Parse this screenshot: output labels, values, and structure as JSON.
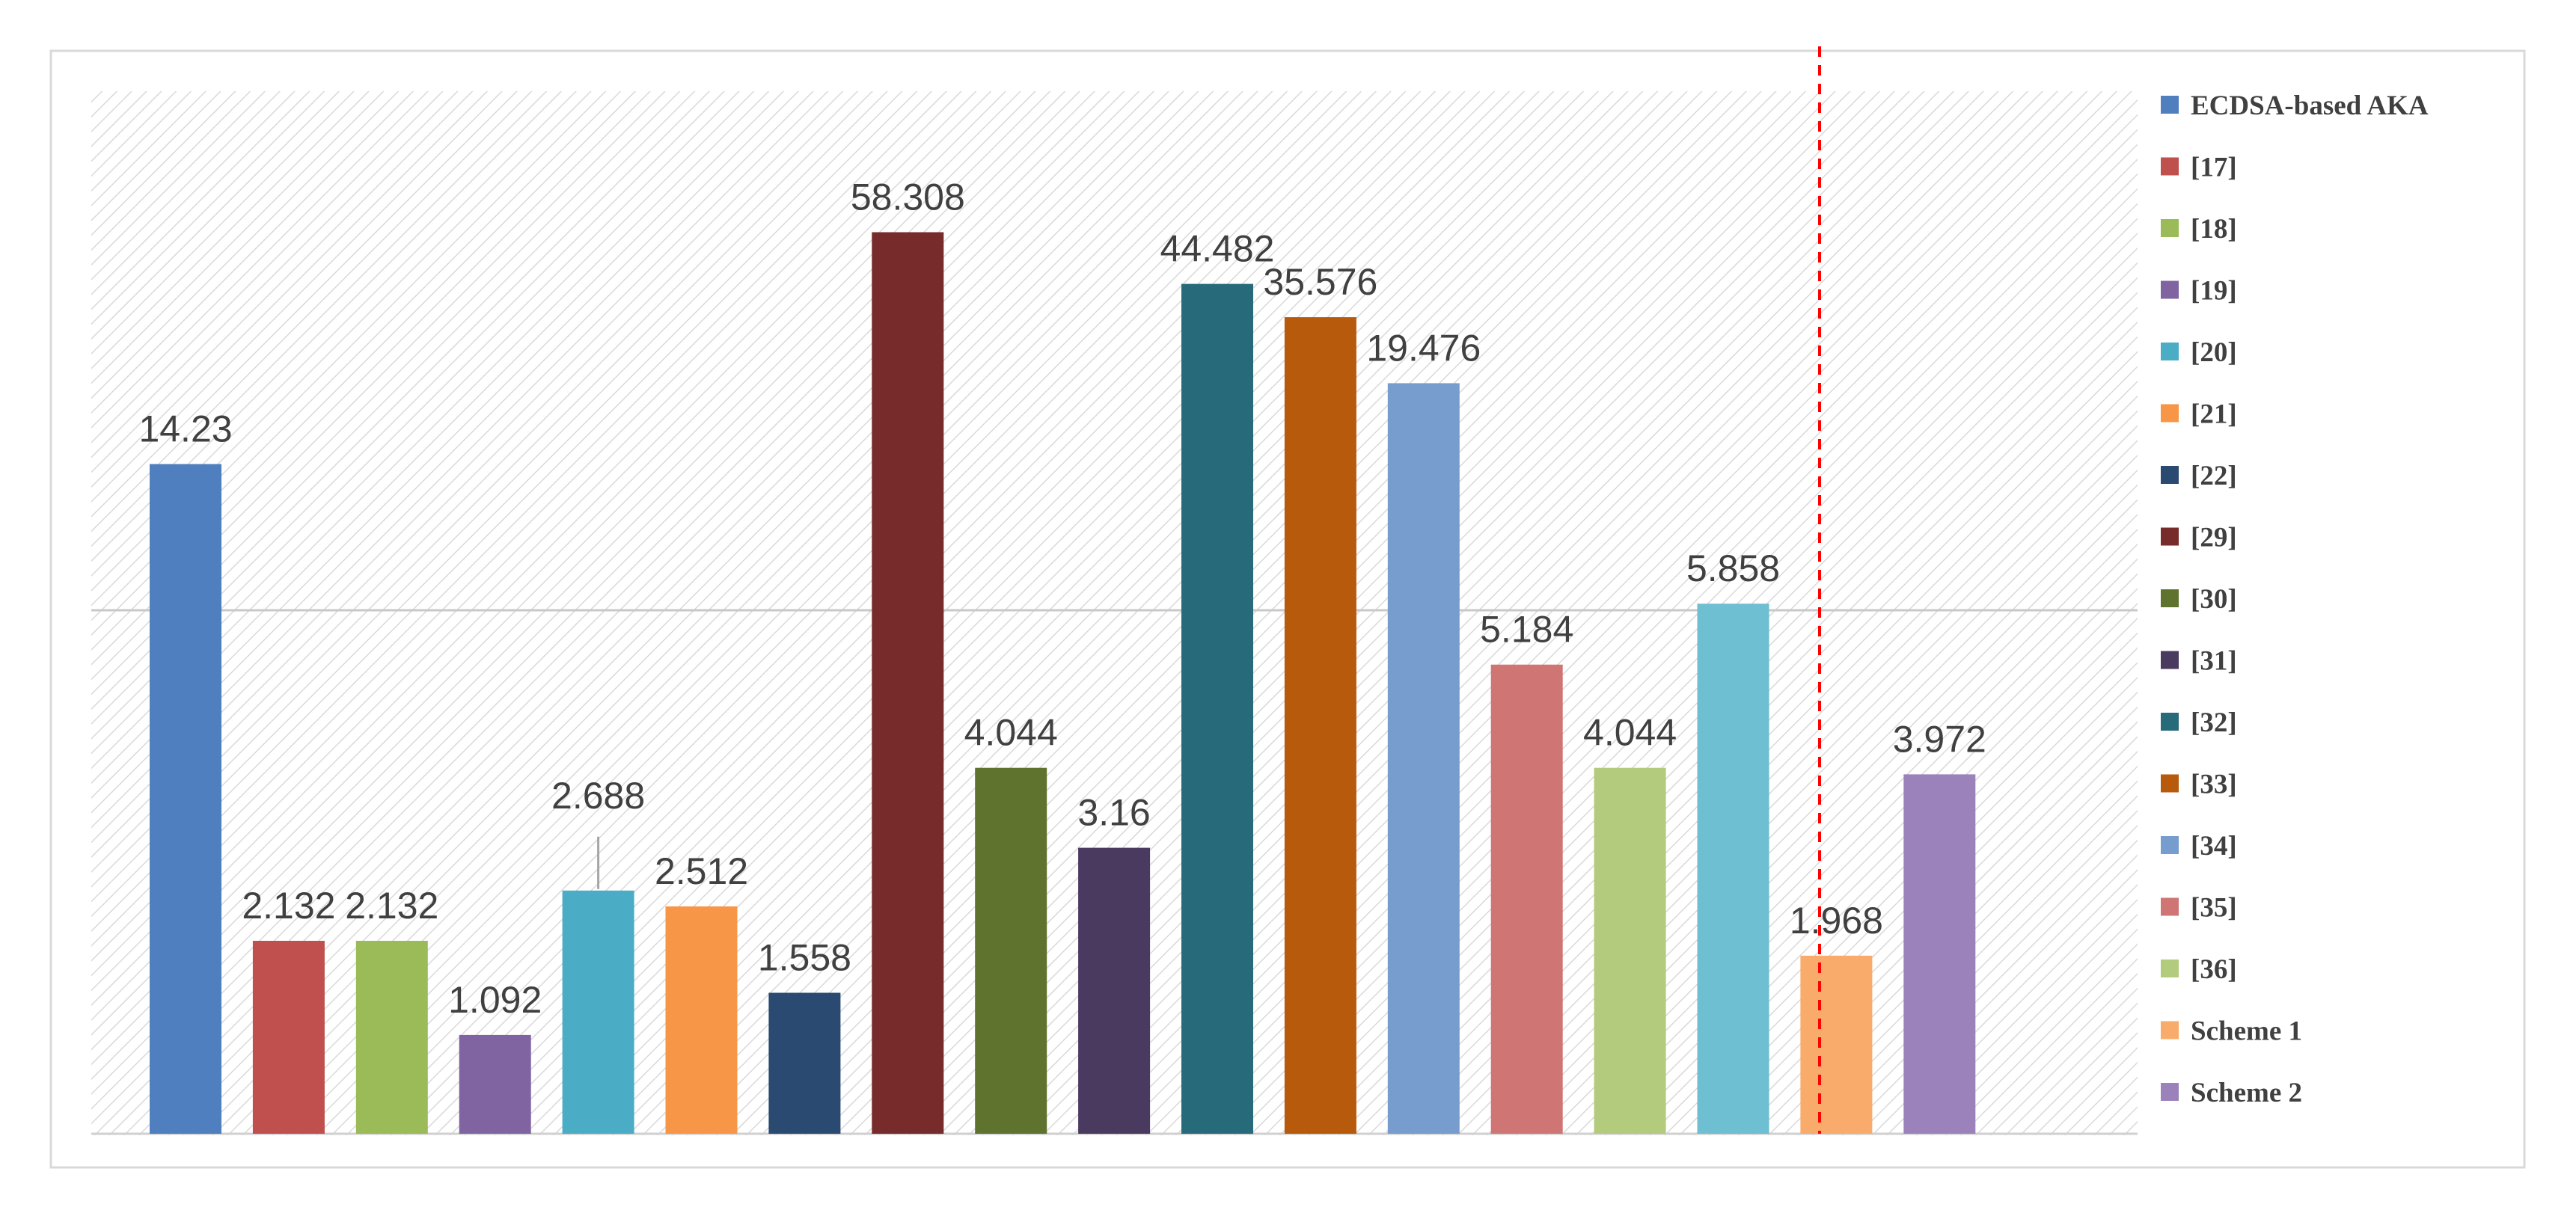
{
  "chart_data": {
    "type": "bar",
    "title": "",
    "xlabel": "",
    "ylabel": "",
    "scale": "broken",
    "grid": true,
    "legend_position": "right",
    "series": [
      {
        "name": "ECDSA-based AKA",
        "value": 14.23,
        "label": "14.23",
        "color": "#4f7fbf"
      },
      {
        "name": "[17]",
        "value": 2.132,
        "label": "2.132",
        "color": "#c0504d"
      },
      {
        "name": "[18]",
        "value": 2.132,
        "label": "2.132",
        "color": "#9bbb59"
      },
      {
        "name": "[19]",
        "value": 1.092,
        "label": "1.092",
        "color": "#8064a2"
      },
      {
        "name": "[20]",
        "value": 2.688,
        "label": "2.688",
        "color": "#4bacc6"
      },
      {
        "name": "[21]",
        "value": 2.512,
        "label": "2.512",
        "color": "#f79646"
      },
      {
        "name": "[22]",
        "value": 1.558,
        "label": "1.558",
        "color": "#2a4a72"
      },
      {
        "name": "[29]",
        "value": 58.308,
        "label": "58.308",
        "color": "#772b2a"
      },
      {
        "name": "[30]",
        "value": 4.044,
        "label": "4.044",
        "color": "#5f732e"
      },
      {
        "name": "[31]",
        "value": 3.16,
        "label": "3.16",
        "color": "#4a3a60"
      },
      {
        "name": "[32]",
        "value": 44.482,
        "label": "44.482",
        "color": "#276a7a"
      },
      {
        "name": "[33]",
        "value": 35.576,
        "label": "35.576",
        "color": "#b85a0c"
      },
      {
        "name": "[34]",
        "value": 19.476,
        "label": "19.476",
        "color": "#779dce"
      },
      {
        "name": "[35]",
        "value": 5.184,
        "label": "5.184",
        "color": "#cf7674"
      },
      {
        "name": "[36]",
        "value": 4.044,
        "label": "4.044",
        "color": "#b2cb7c"
      },
      {
        "name": "",
        "value": 5.858,
        "label": "5.858",
        "color": "#6dbfd1"
      },
      {
        "name": "Scheme 1",
        "value": 1.968,
        "label": "1.968",
        "color": "#f9ab6b"
      },
      {
        "name": "Scheme 2",
        "value": 3.972,
        "label": "3.972",
        "color": "#9c82bb"
      }
    ],
    "separator_after_index": 15
  }
}
